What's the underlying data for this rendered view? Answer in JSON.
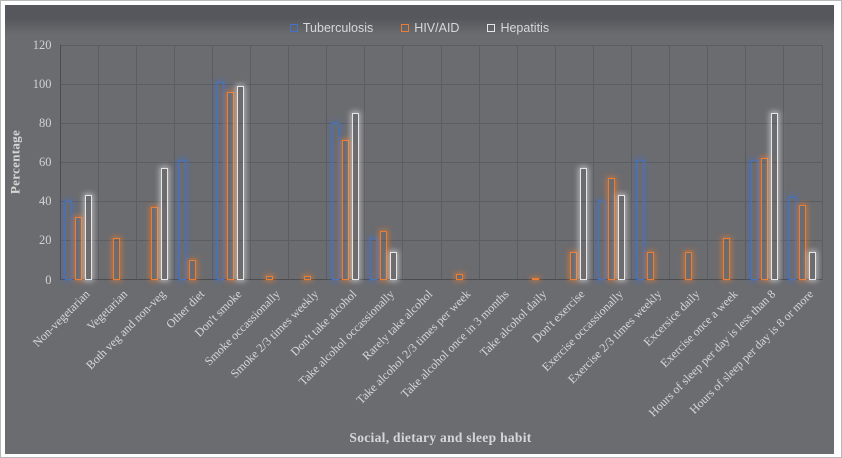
{
  "chart_data": {
    "type": "bar",
    "title": "",
    "xlabel": "Social, dietary and sleep habit",
    "ylabel": "Percentage",
    "ylim": [
      0,
      120
    ],
    "yticks": [
      0,
      20,
      40,
      60,
      80,
      100,
      120
    ],
    "grid": "both",
    "legend_position": "top-center",
    "bar_style": "outlined-glow",
    "categories": [
      "Non-vegetarian",
      "Vegetarian",
      "Both veg and non-veg",
      "Other diet",
      "Don't smoke",
      "Smoke occassionally",
      "Smoke 2/3 times weekly",
      "Don't take alcohol",
      "Take alcohol occassionally",
      "Rarely take alcohol",
      "Take alcohol 2/3 times per week",
      "Take alcohol once in 3 months",
      "Take alcohol daily",
      "Don't exercise",
      "Exercise occassionally",
      "Exercise 2/3 times weekly",
      "Excersice daily",
      "Exercise once a week",
      "Hours of sleep per day is less than 8",
      "Hours of sleep per day is 8 or more"
    ],
    "series": [
      {
        "name": "Tuberculosis",
        "color": "#4472c4",
        "values": [
          40,
          0,
          0,
          61,
          101,
          0,
          0,
          80,
          21,
          0,
          0,
          0,
          0,
          0,
          40,
          61,
          0,
          0,
          61,
          42
        ]
      },
      {
        "name": "HIV/AID",
        "color": "#ed7d31",
        "values": [
          32,
          21,
          37,
          10,
          96,
          2,
          2,
          71,
          25,
          0,
          3,
          0,
          1,
          14,
          52,
          14,
          14,
          21,
          62,
          38
        ]
      },
      {
        "name": "Hepatitis",
        "color": "#e7e6e6",
        "values": [
          43,
          0,
          57,
          0,
          99,
          0,
          0,
          85,
          14,
          0,
          0,
          0,
          0,
          57,
          43,
          0,
          0,
          0,
          85,
          14
        ]
      }
    ]
  },
  "colors": {
    "chart_bg": "#6b6c70",
    "chart_bg_top": "#56575c",
    "gridline": "#5c5d61",
    "axis_line": "#4b4c50",
    "text": "#d6d6d6",
    "frame_bg": "#ffffff"
  }
}
